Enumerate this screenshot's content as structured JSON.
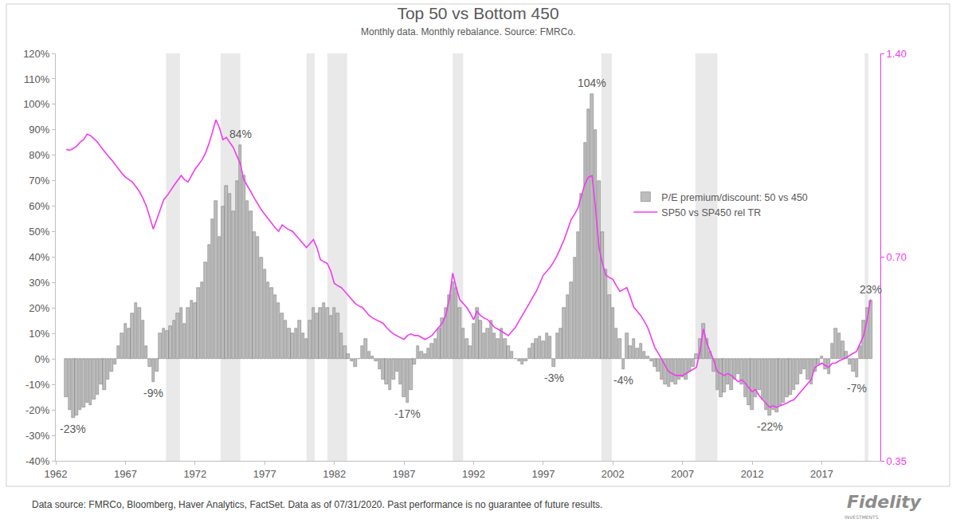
{
  "chart_data": {
    "type": "bar",
    "title": "Top 50 vs Bottom 450",
    "subtitle": "Monthly data. Monthly rebalance. Source: FMRCo.",
    "footnote": "Data source: FMRCo, Bloomberg, Haver Analytics, FactSet. Data as of 07/31/2020. Past performance is no guarantee of future results.",
    "logo": "Fidelity",
    "logo_sub": "INVESTMENTS",
    "grid": false,
    "legend": "right",
    "log": "y2",
    "xlim": [
      1962,
      2021.2
    ],
    "xticks": [
      1962,
      1967,
      1972,
      1977,
      1982,
      1987,
      1992,
      1997,
      2002,
      2007,
      2012,
      2017
    ],
    "ylim": [
      -40,
      120
    ],
    "yticks": [
      {
        "value": -40,
        "label": "-40%"
      },
      {
        "value": -30,
        "label": "-30%"
      },
      {
        "value": -20,
        "label": "-20%"
      },
      {
        "value": -10,
        "label": "-10%"
      },
      {
        "value": 0,
        "label": "0%"
      },
      {
        "value": 10,
        "label": "10%"
      },
      {
        "value": 20,
        "label": "20%"
      },
      {
        "value": 30,
        "label": "30%"
      },
      {
        "value": 40,
        "label": "40%"
      },
      {
        "value": 50,
        "label": "50%"
      },
      {
        "value": 60,
        "label": "60%"
      },
      {
        "value": 70,
        "label": "70%"
      },
      {
        "value": 80,
        "label": "80%"
      },
      {
        "value": 90,
        "label": "90%"
      },
      {
        "value": 100,
        "label": "100%"
      },
      {
        "value": 110,
        "label": "110%"
      },
      {
        "value": 120,
        "label": "120%"
      }
    ],
    "y2lim": [
      0.35,
      1.4
    ],
    "y2ticks": [
      0.35,
      {
        "value": 0.7,
        "label": "0.70"
      },
      {
        "value": 1.4,
        "label": "1.40"
      }
    ],
    "recessions": [
      [
        1969.92,
        1970.92
      ],
      [
        1973.83,
        1975.25
      ],
      [
        1980.0,
        1980.58
      ],
      [
        1981.5,
        1982.92
      ],
      [
        1990.5,
        1991.25
      ],
      [
        2001.17,
        2001.92
      ],
      [
        2007.92,
        2009.5
      ],
      [
        2020.08,
        2020.33
      ]
    ],
    "x": [
      1962.75,
      1963,
      1963.25,
      1963.5,
      1963.75,
      1964,
      1964.25,
      1964.5,
      1964.75,
      1965,
      1965.25,
      1965.5,
      1965.75,
      1966,
      1966.25,
      1966.5,
      1966.75,
      1967,
      1967.25,
      1967.5,
      1967.75,
      1968,
      1968.25,
      1968.5,
      1968.75,
      1969,
      1969.25,
      1969.5,
      1969.75,
      1970,
      1970.25,
      1970.5,
      1970.75,
      1971,
      1971.25,
      1971.5,
      1971.75,
      1972,
      1972.25,
      1972.5,
      1972.75,
      1973,
      1973.25,
      1973.5,
      1973.75,
      1974,
      1974.25,
      1974.5,
      1974.75,
      1975,
      1975.25,
      1975.5,
      1975.75,
      1976,
      1976.25,
      1976.5,
      1976.75,
      1977,
      1977.25,
      1977.5,
      1977.75,
      1978,
      1978.25,
      1978.5,
      1978.75,
      1979,
      1979.25,
      1979.5,
      1979.75,
      1980,
      1980.25,
      1980.5,
      1980.75,
      1981,
      1981.25,
      1981.5,
      1981.75,
      1982,
      1982.25,
      1982.5,
      1982.75,
      1983,
      1983.25,
      1983.5,
      1983.75,
      1984,
      1984.25,
      1984.5,
      1984.75,
      1985,
      1985.25,
      1985.5,
      1985.75,
      1986,
      1986.25,
      1986.5,
      1986.75,
      1987,
      1987.25,
      1987.5,
      1987.75,
      1988,
      1988.25,
      1988.5,
      1988.75,
      1989,
      1989.25,
      1989.5,
      1989.75,
      1990,
      1990.25,
      1990.5,
      1990.75,
      1991,
      1991.25,
      1991.5,
      1991.75,
      1992,
      1992.25,
      1992.5,
      1992.75,
      1993,
      1993.25,
      1993.5,
      1993.75,
      1994,
      1994.25,
      1994.5,
      1994.75,
      1995,
      1995.25,
      1995.5,
      1995.75,
      1996,
      1996.25,
      1996.5,
      1996.75,
      1997,
      1997.25,
      1997.5,
      1997.75,
      1998,
      1998.25,
      1998.5,
      1998.75,
      1999,
      1999.25,
      1999.5,
      1999.75,
      2000,
      2000.25,
      2000.5,
      2000.75,
      2001,
      2001.25,
      2001.5,
      2001.75,
      2002,
      2002.25,
      2002.5,
      2002.75,
      2003,
      2003.25,
      2003.5,
      2003.75,
      2004,
      2004.25,
      2004.5,
      2004.75,
      2005,
      2005.25,
      2005.5,
      2005.75,
      2006,
      2006.25,
      2006.5,
      2006.75,
      2007,
      2007.25,
      2007.5,
      2007.75,
      2008,
      2008.25,
      2008.5,
      2008.75,
      2009,
      2009.25,
      2009.5,
      2009.75,
      2010,
      2010.25,
      2010.5,
      2010.75,
      2011,
      2011.25,
      2011.5,
      2011.75,
      2012,
      2012.25,
      2012.5,
      2012.75,
      2013,
      2013.25,
      2013.5,
      2013.75,
      2014,
      2014.25,
      2014.5,
      2014.75,
      2015,
      2015.25,
      2015.5,
      2015.75,
      2016,
      2016.25,
      2016.5,
      2016.75,
      2017,
      2017.25,
      2017.5,
      2017.75,
      2018,
      2018.25,
      2018.5,
      2018.75,
      2019,
      2019.25,
      2019.5,
      2019.75,
      2020,
      2020.25,
      2020.5
    ],
    "series": [
      {
        "name": "P/E premium/discount: 50 vs 450",
        "type": "bar",
        "color": "#bdbdbd",
        "values": [
          -15,
          -20,
          -23,
          -22,
          -20,
          -19,
          -17,
          -18,
          -16,
          -14,
          -10,
          -12,
          -8,
          -5,
          -2,
          5,
          10,
          14,
          12,
          18,
          22,
          20,
          15,
          5,
          -3,
          -9,
          -5,
          10,
          12,
          11,
          13,
          15,
          18,
          20,
          14,
          20,
          23,
          22,
          28,
          30,
          38,
          45,
          55,
          62,
          48,
          60,
          68,
          65,
          58,
          70,
          84,
          72,
          62,
          58,
          50,
          48,
          40,
          35,
          30,
          28,
          25,
          22,
          18,
          15,
          12,
          10,
          12,
          15,
          10,
          8,
          15,
          20,
          18,
          20,
          22,
          20,
          17,
          20,
          18,
          10,
          5,
          2,
          -1,
          -3,
          0,
          5,
          8,
          3,
          1,
          -1,
          -4,
          -8,
          -10,
          -12,
          -8,
          -5,
          -10,
          -15,
          -17,
          -12,
          -2,
          5,
          3,
          2,
          4,
          6,
          8,
          12,
          16,
          20,
          25,
          30,
          28,
          20,
          12,
          8,
          5,
          14,
          20,
          15,
          10,
          12,
          15,
          10,
          8,
          12,
          8,
          5,
          3,
          0,
          -1,
          -2,
          -1,
          4,
          6,
          8,
          9,
          7,
          10,
          9,
          -3,
          10,
          12,
          20,
          25,
          30,
          40,
          50,
          65,
          85,
          98,
          104,
          90,
          70,
          50,
          35,
          25,
          20,
          12,
          8,
          -4,
          10,
          5,
          8,
          4,
          6,
          3,
          1,
          -1,
          -3,
          -5,
          -8,
          -10,
          -11,
          -9,
          -10,
          -8,
          -7,
          -8,
          -5,
          -3,
          2,
          8,
          14,
          8,
          3,
          -5,
          -12,
          -15,
          -13,
          -10,
          -12,
          -8,
          -6,
          -10,
          -15,
          -18,
          -20,
          -15,
          -12,
          -16,
          -20,
          -22,
          -20,
          -21,
          -18,
          -17,
          -15,
          -14,
          -12,
          -10,
          -6,
          -4,
          -8,
          -10,
          -5,
          -2,
          1,
          -4,
          -6,
          6,
          12,
          10,
          7,
          3,
          -2,
          -5,
          -7,
          5,
          15,
          20,
          23
        ]
      },
      {
        "name": "SP50 vs SP450 rel TR",
        "type": "line",
        "color": "#f03cf0",
        "axis": "y2",
        "values": [
          1.01,
          1.007,
          1.013,
          1.021,
          1.035,
          1.044,
          1.064,
          1.058,
          1.047,
          1.035,
          1.018,
          1.002,
          0.988,
          0.975,
          0.959,
          0.944,
          0.931,
          0.919,
          0.911,
          0.904,
          0.89,
          0.875,
          0.856,
          0.833,
          0.802,
          0.77,
          0.795,
          0.823,
          0.851,
          0.863,
          0.88,
          0.894,
          0.909,
          0.924,
          0.911,
          0.904,
          0.924,
          0.944,
          0.959,
          0.975,
          0.997,
          1.03,
          1.072,
          1.117,
          1.087,
          1.044,
          1.052,
          1.035,
          1.016,
          0.988,
          0.962,
          0.911,
          0.894,
          0.875,
          0.856,
          0.839,
          0.823,
          0.81,
          0.797,
          0.785,
          0.774,
          0.764,
          0.781,
          0.774,
          0.768,
          0.764,
          0.753,
          0.743,
          0.733,
          0.723,
          0.733,
          0.743,
          0.723,
          0.694,
          0.689,
          0.685,
          0.667,
          0.64,
          0.635,
          0.631,
          0.623,
          0.614,
          0.606,
          0.598,
          0.593,
          0.59,
          0.582,
          0.574,
          0.569,
          0.566,
          0.563,
          0.559,
          0.551,
          0.544,
          0.539,
          0.536,
          0.533,
          0.529,
          0.536,
          0.539,
          0.536,
          0.536,
          0.533,
          0.529,
          0.532,
          0.536,
          0.544,
          0.551,
          0.559,
          0.574,
          0.606,
          0.663,
          0.631,
          0.606,
          0.598,
          0.59,
          0.579,
          0.566,
          0.582,
          0.574,
          0.569,
          0.566,
          0.559,
          0.551,
          0.548,
          0.544,
          0.539,
          0.536,
          0.544,
          0.551,
          0.563,
          0.574,
          0.585,
          0.598,
          0.611,
          0.623,
          0.64,
          0.658,
          0.667,
          0.676,
          0.689,
          0.704,
          0.723,
          0.743,
          0.768,
          0.795,
          0.81,
          0.828,
          0.863,
          0.899,
          0.919,
          0.924,
          0.828,
          0.723,
          0.685,
          0.658,
          0.653,
          0.649,
          0.635,
          0.623,
          0.627,
          0.631,
          0.611,
          0.59,
          0.582,
          0.574,
          0.563,
          0.551,
          0.533,
          0.515,
          0.505,
          0.494,
          0.484,
          0.474,
          0.471,
          0.468,
          0.468,
          0.468,
          0.471,
          0.474,
          0.478,
          0.481,
          0.508,
          0.548,
          0.522,
          0.508,
          0.492,
          0.474,
          0.471,
          0.468,
          0.471,
          0.468,
          0.463,
          0.458,
          0.461,
          0.456,
          0.449,
          0.443,
          0.446,
          0.437,
          0.431,
          0.426,
          0.42,
          0.422,
          0.42,
          0.422,
          0.424,
          0.426,
          0.429,
          0.431,
          0.437,
          0.443,
          0.449,
          0.456,
          0.462,
          0.481,
          0.484,
          0.488,
          0.484,
          0.481,
          0.488,
          0.488,
          0.492,
          0.494,
          0.497,
          0.501,
          0.505,
          0.508,
          0.522,
          0.536,
          0.566,
          0.606
        ]
      }
    ],
    "annotations": [
      {
        "text": "-23%",
        "x": 1963.25,
        "y": -23
      },
      {
        "text": "-9%",
        "x": 1969,
        "y": -9
      },
      {
        "text": "84%",
        "x": 1975.25,
        "y": 84
      },
      {
        "text": "-17%",
        "x": 1987.25,
        "y": -17
      },
      {
        "text": "-3%",
        "x": 1997.75,
        "y": -3
      },
      {
        "text": "104%",
        "x": 2000.5,
        "y": 104
      },
      {
        "text": "-4%",
        "x": 2002.75,
        "y": -4
      },
      {
        "text": "-22%",
        "x": 2013.25,
        "y": -22
      },
      {
        "text": "23%",
        "x": 2020.5,
        "y": 23
      },
      {
        "text": "-7%",
        "x": 2019.5,
        "y": -7
      }
    ]
  }
}
